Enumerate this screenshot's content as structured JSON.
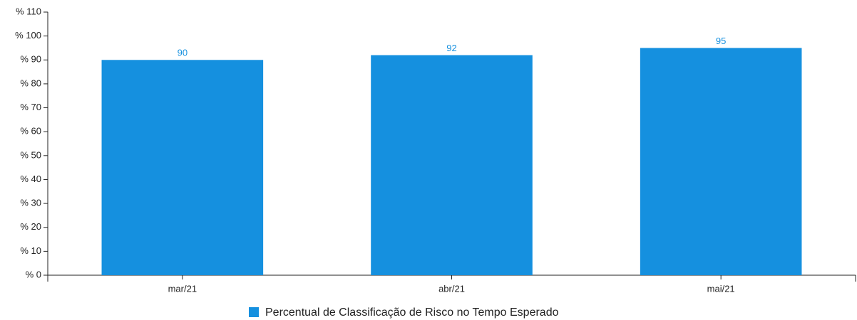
{
  "chart_data": {
    "type": "bar",
    "categories": [
      "mar/21",
      "abr/21",
      "mai/21"
    ],
    "series": [
      {
        "name": "Percentual de Classificação de Risco no Tempo Esperado",
        "color": "#1590df",
        "values": [
          90,
          92,
          95
        ]
      }
    ],
    "ylim": [
      0,
      110
    ],
    "yticks": [
      {
        "value": 0,
        "label": "% 0"
      },
      {
        "value": 10,
        "label": "% 10"
      },
      {
        "value": 20,
        "label": "% 20"
      },
      {
        "value": 30,
        "label": "% 30"
      },
      {
        "value": 40,
        "label": "% 40"
      },
      {
        "value": 50,
        "label": "% 50"
      },
      {
        "value": 60,
        "label": "% 60"
      },
      {
        "value": 70,
        "label": "% 70"
      },
      {
        "value": 80,
        "label": "% 80"
      },
      {
        "value": 90,
        "label": "% 90"
      },
      {
        "value": 100,
        "label": "% 100"
      },
      {
        "value": 110,
        "label": "% 110"
      }
    ],
    "grid": false,
    "legend": "bottom"
  }
}
